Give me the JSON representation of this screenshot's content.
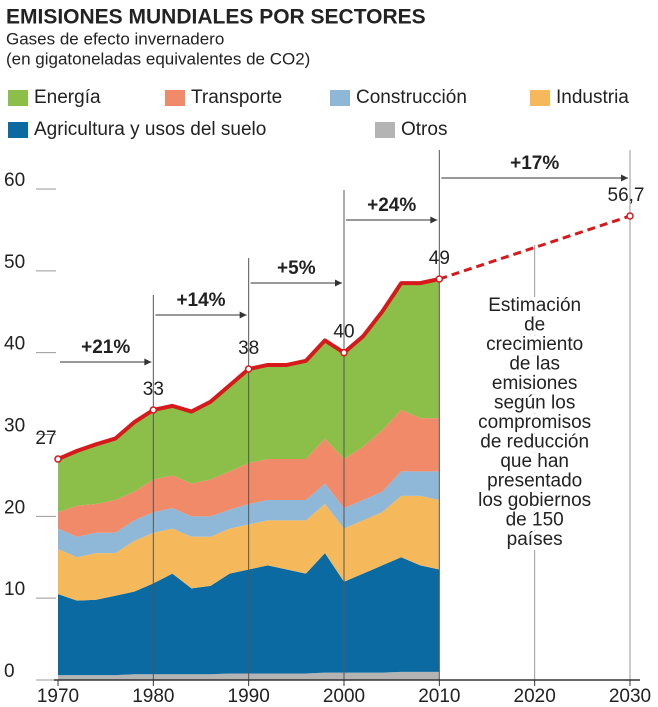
{
  "chart_data": {
    "type": "stacked_area",
    "title": "EMISIONES MUNDIALES POR SECTORES",
    "subtitle": [
      "Gases de efecto invernadero",
      "(en gigatoneladas equivalentes de CO2)"
    ],
    "x": [
      1970,
      1972,
      1974,
      1976,
      1978,
      1980,
      1982,
      1984,
      1986,
      1988,
      1990,
      1992,
      1994,
      1996,
      1998,
      2000,
      2002,
      2004,
      2006,
      2008,
      2010
    ],
    "series": [
      {
        "name": "Energía",
        "color": "#8cbf4a",
        "values": [
          6.5,
          6.7,
          7.3,
          7.5,
          8.5,
          8.5,
          8.5,
          8.8,
          9.5,
          10.5,
          11.5,
          11.5,
          11.5,
          12,
          12,
          13,
          13.5,
          14.5,
          15.5,
          16.5,
          17
        ]
      },
      {
        "name": "Transporte",
        "color": "#f08a68",
        "values": [
          2,
          3.8,
          3.5,
          4,
          3.5,
          4,
          4,
          4,
          4.5,
          4.7,
          5,
          5,
          5,
          5,
          5.5,
          6,
          6.5,
          7.5,
          7.5,
          6.5,
          6.5
        ]
      },
      {
        "name": "Construcción",
        "color": "#8fb8d8",
        "values": [
          2.5,
          2.5,
          2.5,
          2.5,
          2.5,
          2.5,
          2.5,
          2.5,
          2.5,
          2.3,
          2.5,
          2.5,
          2.5,
          2.5,
          2.5,
          2.5,
          2.5,
          2.5,
          3,
          3,
          3.5
        ]
      },
      {
        "name": "Industria",
        "color": "#f5b95c",
        "values": [
          5.5,
          5.3,
          5.7,
          5.2,
          6.2,
          6.2,
          5.5,
          6.3,
          6,
          5.5,
          5.5,
          5.5,
          6,
          6.5,
          6,
          6.5,
          6.5,
          6.5,
          7.5,
          8.5,
          8.5
        ]
      },
      {
        "name": "Agricultura y usos del suelo",
        "color": "#0a6aa1",
        "values": [
          9.9,
          9.1,
          9.2,
          9.7,
          10.1,
          11.1,
          12.3,
          10.5,
          10.8,
          12.2,
          12.7,
          13.2,
          12.7,
          12.2,
          14.6,
          11.1,
          12.1,
          13.1,
          14,
          13,
          12.5
        ]
      },
      {
        "name": "Otros",
        "color": "#b4b4b4",
        "values": [
          0.6,
          0.6,
          0.6,
          0.6,
          0.7,
          0.7,
          0.7,
          0.7,
          0.7,
          0.8,
          0.8,
          0.8,
          0.8,
          0.8,
          0.9,
          0.9,
          0.9,
          0.9,
          1,
          1,
          1
        ]
      }
    ],
    "total_color": "#d7191c",
    "points": [
      {
        "x": 1970,
        "value": 27,
        "label": "27"
      },
      {
        "x": 1980,
        "value": 33,
        "label": "33"
      },
      {
        "x": 1990,
        "value": 38,
        "label": "38"
      },
      {
        "x": 2000,
        "value": 40,
        "label": "40"
      },
      {
        "x": 2010,
        "value": 49,
        "label": "49"
      },
      {
        "x": 2030,
        "value": 56.7,
        "label": "56,7"
      }
    ],
    "projection": {
      "from": 4,
      "to": 5
    },
    "growth": [
      {
        "from": 1970,
        "to": 1980,
        "label": "+21%"
      },
      {
        "from": 1980,
        "to": 1990,
        "label": "+14%"
      },
      {
        "from": 1990,
        "to": 2000,
        "label": "+5%"
      },
      {
        "from": 2000,
        "to": 2010,
        "label": "+24%"
      },
      {
        "from": 2010,
        "to": 2030,
        "label": "+17%"
      }
    ],
    "note": [
      "Estimación",
      "de",
      "crecimiento",
      "de las",
      "emisiones",
      "según los",
      "compromisos",
      "de reducción",
      "que han",
      "presentado",
      "los gobiernos",
      "de 150",
      "países"
    ],
    "note_x": 2020,
    "xlim": [
      1970,
      2030
    ],
    "xticks": [
      1970,
      1980,
      1990,
      2000,
      2010,
      2020,
      2030
    ],
    "ylim": [
      0,
      60
    ],
    "yticks": [
      0,
      10,
      20,
      30,
      40,
      50,
      60
    ]
  }
}
